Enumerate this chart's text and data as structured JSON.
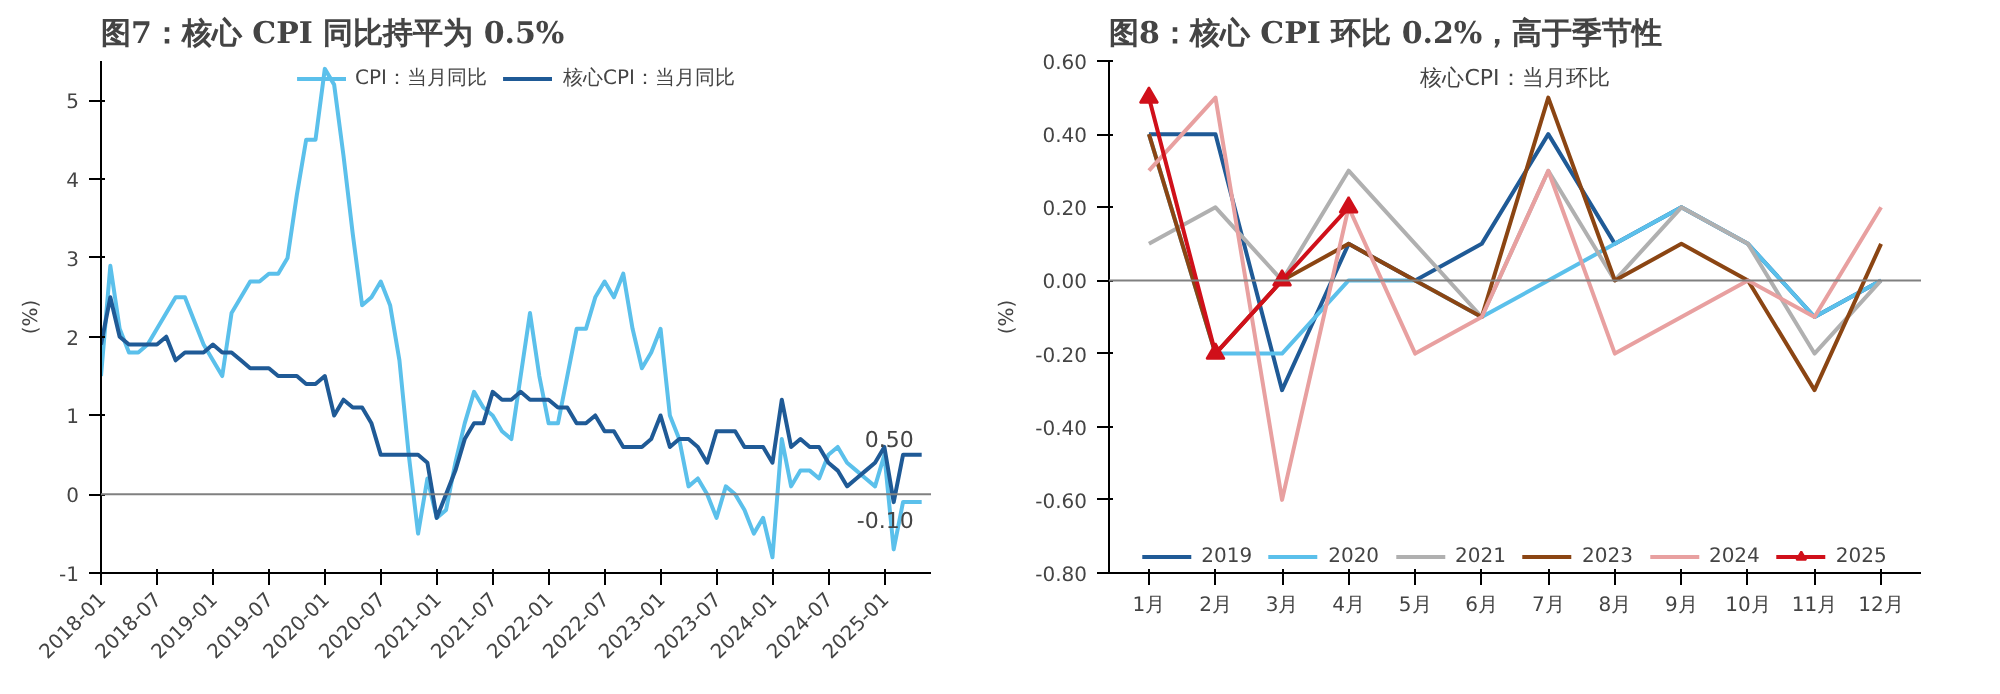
{
  "chart_data": [
    {
      "type": "line",
      "title": "图7：核心 CPI 同比持平为 0.5%",
      "ylabel": "(%)",
      "legend": "top",
      "x": [
        "2018-01",
        "2018-02",
        "2018-03",
        "2018-04",
        "2018-05",
        "2018-06",
        "2018-07",
        "2018-08",
        "2018-09",
        "2018-10",
        "2018-11",
        "2018-12",
        "2019-01",
        "2019-02",
        "2019-03",
        "2019-04",
        "2019-05",
        "2019-06",
        "2019-07",
        "2019-08",
        "2019-09",
        "2019-10",
        "2019-11",
        "2019-12",
        "2020-01",
        "2020-02",
        "2020-03",
        "2020-04",
        "2020-05",
        "2020-06",
        "2020-07",
        "2020-08",
        "2020-09",
        "2020-10",
        "2020-11",
        "2020-12",
        "2021-01",
        "2021-02",
        "2021-03",
        "2021-04",
        "2021-05",
        "2021-06",
        "2021-07",
        "2021-08",
        "2021-09",
        "2021-10",
        "2021-11",
        "2021-12",
        "2022-01",
        "2022-02",
        "2022-03",
        "2022-04",
        "2022-05",
        "2022-06",
        "2022-07",
        "2022-08",
        "2022-09",
        "2022-10",
        "2022-11",
        "2022-12",
        "2023-01",
        "2023-02",
        "2023-03",
        "2023-04",
        "2023-05",
        "2023-06",
        "2023-07",
        "2023-08",
        "2023-09",
        "2023-10",
        "2023-11",
        "2023-12",
        "2024-01",
        "2024-02",
        "2024-03",
        "2024-04",
        "2024-05",
        "2024-06",
        "2024-07",
        "2024-08",
        "2024-09",
        "2024-10",
        "2024-11",
        "2024-12",
        "2025-01",
        "2025-02",
        "2025-03",
        "2025-04",
        "2025-05"
      ],
      "series": [
        {
          "name": "CPI：当月同比",
          "color": "#5bc0eb",
          "values": [
            1.5,
            2.9,
            2.1,
            1.8,
            1.8,
            1.9,
            2.1,
            2.3,
            2.5,
            2.5,
            2.2,
            1.9,
            1.7,
            1.5,
            2.3,
            2.5,
            2.7,
            2.7,
            2.8,
            2.8,
            3.0,
            3.8,
            4.5,
            4.5,
            5.4,
            5.2,
            4.3,
            3.3,
            2.4,
            2.5,
            2.7,
            2.4,
            1.7,
            0.5,
            -0.5,
            0.2,
            -0.3,
            -0.2,
            0.4,
            0.9,
            1.3,
            1.1,
            1.0,
            0.8,
            0.7,
            1.5,
            2.3,
            1.5,
            0.9,
            0.9,
            1.5,
            2.1,
            2.1,
            2.5,
            2.7,
            2.5,
            2.8,
            2.1,
            1.6,
            1.8,
            2.1,
            1.0,
            0.7,
            0.1,
            0.2,
            0.0,
            -0.3,
            0.1,
            0.0,
            -0.2,
            -0.5,
            -0.3,
            -0.8,
            0.7,
            0.1,
            0.3,
            0.3,
            0.2,
            0.5,
            0.6,
            0.4,
            0.3,
            0.2,
            0.1,
            0.5,
            -0.7,
            -0.1,
            -0.1,
            -0.1
          ]
        },
        {
          "name": "核心CPI：当月同比",
          "color": "#1f5a96",
          "values": [
            1.9,
            2.5,
            2.0,
            1.9,
            1.9,
            1.9,
            1.9,
            2.0,
            1.7,
            1.8,
            1.8,
            1.8,
            1.9,
            1.8,
            1.8,
            1.7,
            1.6,
            1.6,
            1.6,
            1.5,
            1.5,
            1.5,
            1.4,
            1.4,
            1.5,
            1.0,
            1.2,
            1.1,
            1.1,
            0.9,
            0.5,
            0.5,
            0.5,
            0.5,
            0.5,
            0.4,
            -0.3,
            0.0,
            0.3,
            0.7,
            0.9,
            0.9,
            1.3,
            1.2,
            1.2,
            1.3,
            1.2,
            1.2,
            1.2,
            1.1,
            1.1,
            0.9,
            0.9,
            1.0,
            0.8,
            0.8,
            0.6,
            0.6,
            0.6,
            0.7,
            1.0,
            0.6,
            0.7,
            0.7,
            0.6,
            0.4,
            0.8,
            0.8,
            0.8,
            0.6,
            0.6,
            0.6,
            0.4,
            1.2,
            0.6,
            0.7,
            0.6,
            0.6,
            0.4,
            0.3,
            0.1,
            0.2,
            0.3,
            0.4,
            0.6,
            -0.1,
            0.5,
            0.5,
            0.5
          ]
        }
      ],
      "xlim": [
        "2018-01",
        "2025-06"
      ],
      "xticks": [
        "2018-01",
        "2018-07",
        "2019-01",
        "2019-07",
        "2020-01",
        "2020-07",
        "2021-01",
        "2021-07",
        "2022-01",
        "2022-07",
        "2023-01",
        "2023-07",
        "2024-01",
        "2024-07",
        "2025-01"
      ],
      "ylim": [
        -1,
        5.5
      ],
      "yticks": [
        -1,
        0,
        1,
        2,
        3,
        4,
        5
      ],
      "ref_lines": [
        {
          "axis": "y",
          "value": 0
        }
      ],
      "annotations": [
        {
          "text": "0.50",
          "x": "2025-05",
          "y": 0.5
        },
        {
          "text": "-0.10",
          "x": "2025-05",
          "y": -0.1
        }
      ]
    },
    {
      "type": "line",
      "title": "图8：核心 CPI 环比 0.2%，高于季节性",
      "subtitle": "核心CPI：当月环比",
      "ylabel": "(%)",
      "legend": "bottom",
      "categories": [
        "1月",
        "2月",
        "3月",
        "4月",
        "5月",
        "6月",
        "7月",
        "8月",
        "9月",
        "10月",
        "11月",
        "12月"
      ],
      "series": [
        {
          "name": "2019",
          "color": "#1f5a96",
          "values": [
            0.4,
            0.4,
            -0.3,
            0.1,
            0.0,
            0.1,
            0.4,
            0.1,
            0.2,
            0.1,
            -0.1,
            0.0
          ]
        },
        {
          "name": "2020",
          "color": "#5bc0eb",
          "values": [
            0.4,
            -0.2,
            -0.2,
            0.0,
            0.0,
            -0.1,
            0.0,
            0.1,
            0.2,
            0.1,
            -0.1,
            0.0
          ]
        },
        {
          "name": "2021",
          "color": "#b0b0b0",
          "values": [
            0.1,
            0.2,
            0.0,
            0.3,
            0.1,
            -0.1,
            0.3,
            0.0,
            0.2,
            0.1,
            -0.2,
            0.0
          ]
        },
        {
          "name": "2023",
          "color": "#8b4513",
          "values": [
            0.4,
            -0.2,
            0.0,
            0.1,
            0.0,
            -0.1,
            0.5,
            0.0,
            0.1,
            0.0,
            -0.3,
            0.1
          ]
        },
        {
          "name": "2024",
          "color": "#e8a0a0",
          "values": [
            0.3,
            0.5,
            -0.6,
            0.2,
            -0.2,
            -0.1,
            0.3,
            -0.2,
            -0.1,
            0.0,
            -0.1,
            0.2
          ]
        },
        {
          "name": "2025",
          "color": "#d0101a",
          "marker": "triangle",
          "values": [
            0.5,
            -0.2,
            0.0,
            0.2,
            null,
            null,
            null,
            null,
            null,
            null,
            null,
            null
          ]
        }
      ],
      "ylim": [
        -0.8,
        0.6
      ],
      "yticks": [
        {
          "value": -0.8,
          "label": "-0.80"
        },
        {
          "value": -0.6,
          "label": "-0.60"
        },
        {
          "value": -0.4,
          "label": "-0.40"
        },
        {
          "value": -0.2,
          "label": "-0.20"
        },
        {
          "value": 0,
          "label": "0.00"
        },
        {
          "value": 0.2,
          "label": "0.20"
        },
        {
          "value": 0.4,
          "label": "0.40"
        },
        {
          "value": 0.6,
          "label": "0.60"
        }
      ],
      "ref_lines": [
        {
          "axis": "y",
          "value": 0
        }
      ]
    }
  ]
}
